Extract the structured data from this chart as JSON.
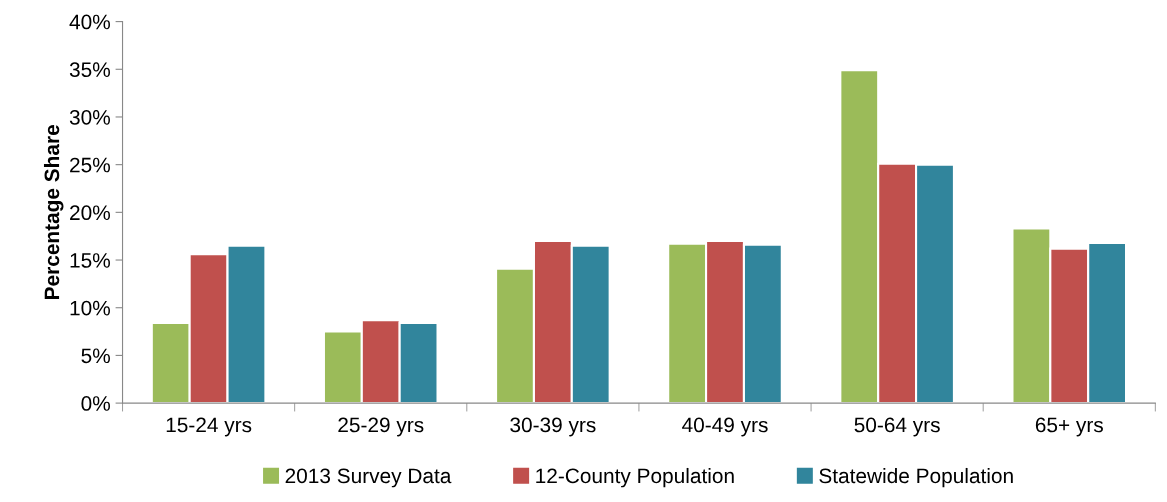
{
  "chart_data": {
    "type": "bar",
    "ylabel": "Percentage Share",
    "categories": [
      "15-24 yrs",
      "25-29 yrs",
      "30-39 yrs",
      "40-49 yrs",
      "50-64 yrs",
      "65+ yrs"
    ],
    "series": [
      {
        "name": "2013 Survey Data",
        "color": "#9bbb59",
        "values": [
          8.4,
          7.5,
          14.1,
          16.7,
          34.9,
          18.3
        ]
      },
      {
        "name": "12-County Population",
        "color": "#c0504d",
        "values": [
          15.6,
          8.7,
          17.0,
          17.0,
          25.1,
          16.2
        ]
      },
      {
        "name": "Statewide Population",
        "color": "#31859c",
        "values": [
          16.5,
          8.4,
          16.5,
          16.6,
          25.0,
          16.8
        ]
      }
    ],
    "ylim": [
      0,
      40
    ],
    "yticks": [
      {
        "value": 0,
        "label": "0%"
      },
      {
        "value": 5,
        "label": "5%"
      },
      {
        "value": 10,
        "label": "10%"
      },
      {
        "value": 15,
        "label": "15%"
      },
      {
        "value": 20,
        "label": "20%"
      },
      {
        "value": 25,
        "label": "25%"
      },
      {
        "value": 30,
        "label": "30%"
      },
      {
        "value": 35,
        "label": "35%"
      },
      {
        "value": 40,
        "label": "40%"
      }
    ],
    "grid": false,
    "legend": "bottom"
  }
}
